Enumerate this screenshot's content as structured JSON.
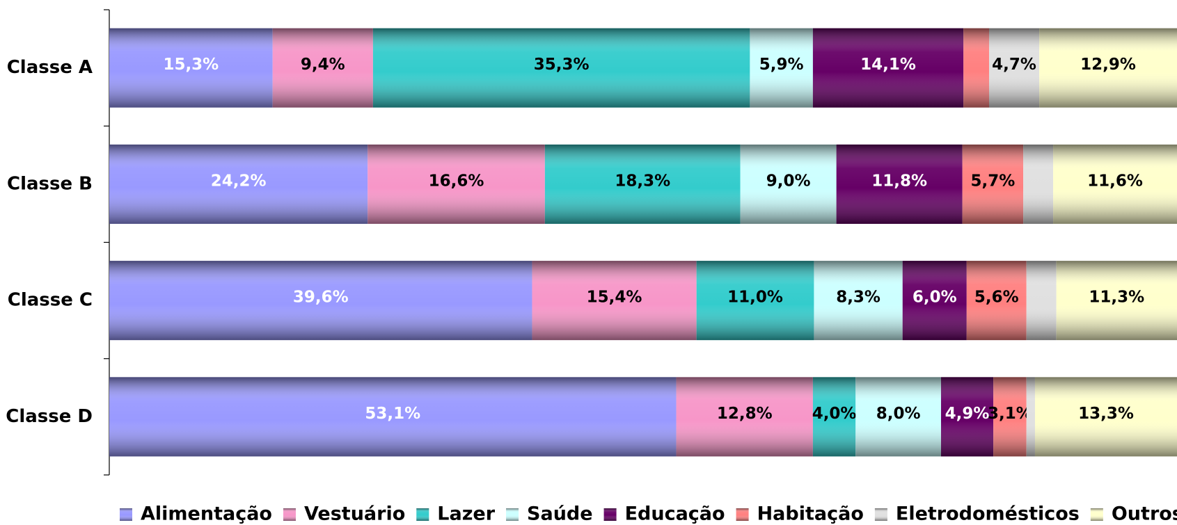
{
  "chart_data": {
    "type": "stacked_barh",
    "categories": [
      "Classe A",
      "Classe B",
      "Classe C",
      "Classe D"
    ],
    "xlim": [
      0,
      100
    ],
    "series": [
      {
        "name": "Alimentação",
        "color": "#9999ff",
        "label_color": "#ffffff",
        "values": [
          15.3,
          24.2,
          39.6,
          53.1
        ],
        "value_labels": [
          "15,3%",
          "24,2%",
          "39,6%",
          "53,1%"
        ]
      },
      {
        "name": "Vestuário",
        "color": "#f796c8",
        "label_color": "#000000",
        "values": [
          9.4,
          16.6,
          15.4,
          12.8
        ],
        "value_labels": [
          "9,4%",
          "16,6%",
          "15,4%",
          "12,8%"
        ]
      },
      {
        "name": "Lazer",
        "color": "#33cccc",
        "label_color": "#000000",
        "values": [
          35.3,
          18.3,
          11.0,
          4.0
        ],
        "value_labels": [
          "35,3%",
          "18,3%",
          "11,0%",
          "4,0%"
        ]
      },
      {
        "name": "Saúde",
        "color": "#ccffff",
        "label_color": "#000000",
        "values": [
          5.9,
          9.0,
          8.3,
          8.0
        ],
        "value_labels": [
          "5,9%",
          "9,0%",
          "8,3%",
          "8,0%"
        ]
      },
      {
        "name": "Educação",
        "color": "#660066",
        "label_color": "#ffffff",
        "values": [
          14.1,
          11.8,
          6.0,
          4.9
        ],
        "value_labels": [
          "14,1%",
          "11,8%",
          "6,0%",
          "4,9%"
        ]
      },
      {
        "name": "Habitação",
        "color": "#ff8080",
        "label_color": "#000000",
        "values": [
          2.4,
          5.7,
          5.6,
          3.1
        ],
        "value_labels": [
          null,
          "5,7%",
          "5,6%",
          "3,1%"
        ]
      },
      {
        "name": "Eletrodomésticos",
        "color": "#e0e0e0",
        "label_color": "#000000",
        "values": [
          4.7,
          2.8,
          2.8,
          0.8
        ],
        "value_labels": [
          "4,7%",
          null,
          null,
          null
        ]
      },
      {
        "name": "Outros",
        "color": "#ffffcc",
        "label_color": "#000000",
        "values": [
          12.9,
          11.6,
          11.3,
          13.3
        ],
        "value_labels": [
          "12,9%",
          "11,6%",
          "11,3%",
          "13,3%"
        ]
      }
    ]
  }
}
